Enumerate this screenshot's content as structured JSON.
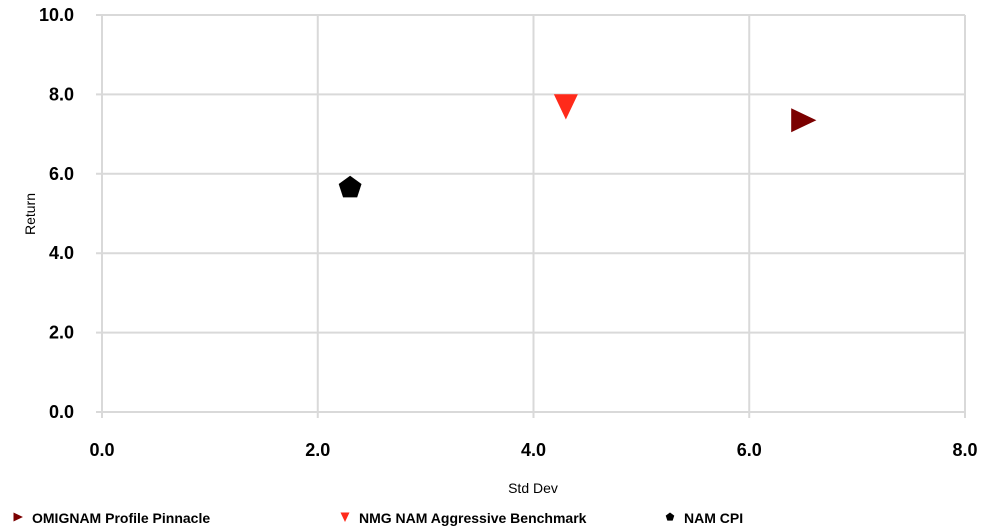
{
  "chart_data": {
    "type": "scatter",
    "xlabel": "Std Dev",
    "ylabel": "Return",
    "xlim": [
      0,
      8
    ],
    "ylim": [
      0,
      10
    ],
    "xticks": [
      "0.0",
      "2.0",
      "4.0",
      "6.0",
      "8.0"
    ],
    "yticks": [
      "0.0",
      "2.0",
      "4.0",
      "6.0",
      "8.0",
      "10.0"
    ],
    "grid": true,
    "legend_position": "bottom",
    "series": [
      {
        "name": "OMIGNAM Profile Pinnacle",
        "marker": "triangle-right",
        "color": "#7b0000",
        "x": 6.5,
        "y": 7.35
      },
      {
        "name": "NMG NAM Aggressive Benchmark",
        "marker": "triangle-down",
        "color": "#ff2a1a",
        "x": 4.3,
        "y": 7.7
      },
      {
        "name": "NAM CPI",
        "marker": "pentagon",
        "color": "#000000",
        "x": 2.3,
        "y": 5.65
      }
    ]
  }
}
